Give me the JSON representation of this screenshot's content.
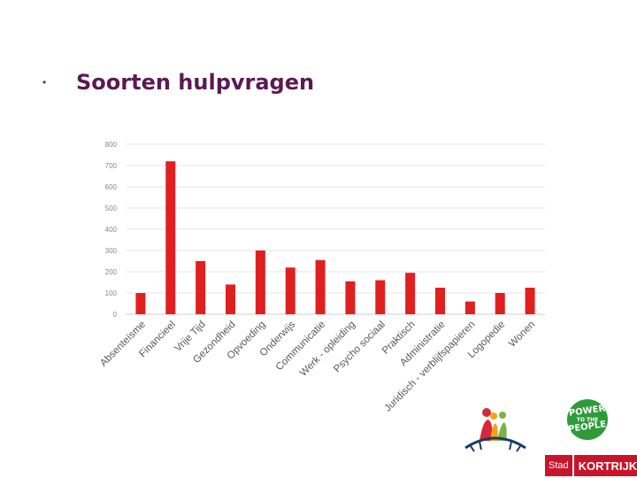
{
  "slide": {
    "bullet": "•",
    "title": "Soorten hulpvragen"
  },
  "chart_data": {
    "type": "bar",
    "title": "",
    "xlabel": "",
    "ylabel": "",
    "ylim": [
      0,
      800
    ],
    "yticks": [
      "0",
      "100",
      "200",
      "300",
      "400",
      "500",
      "600",
      "700",
      "800"
    ],
    "grid": true,
    "legend": "none",
    "bar_color": "#e0201f",
    "categories": [
      "Absenteïsme",
      "Financieel",
      "Vrije Tijd",
      "Gezondheid",
      "Opvoeding",
      "Onderwijs",
      "Communicatie",
      "Werk - opleiding",
      "Psycho sociaal",
      "Praktisch",
      "Administratie",
      "Juridisch - verblijfspapieren",
      "Logopedie",
      "Wonen"
    ],
    "values": [
      100,
      720,
      250,
      140,
      300,
      220,
      255,
      155,
      160,
      195,
      125,
      60,
      100,
      125
    ]
  },
  "logos": {
    "power_line1": "POWER",
    "power_line2": "TO THE",
    "power_line3": "PEOPLE",
    "kortrijk_stad": "Stad",
    "kortrijk_name": "KORTRIJK",
    "power_color": "#2e9a3a",
    "kortrijk_color": "#c9142b"
  }
}
